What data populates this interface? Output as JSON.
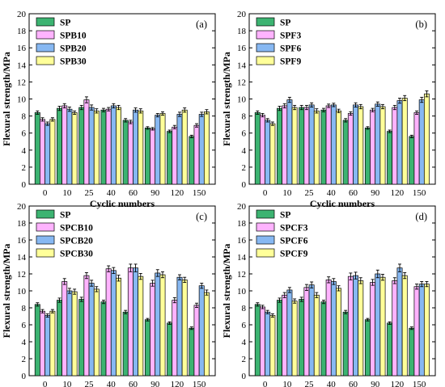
{
  "colors": [
    "#3cb371",
    "#ffb3ff",
    "#87b8f2",
    "#ffff99"
  ],
  "chart_data": [
    {
      "type": "bar",
      "panel_label": "(a)",
      "xlabel": "Cyclic numbers",
      "ylabel": "Flexural strength/MPa",
      "ylim": [
        0,
        20
      ],
      "yticks": [
        0,
        2,
        4,
        6,
        8,
        10,
        12,
        14,
        16,
        18,
        20
      ],
      "categories": [
        "0",
        "10",
        "25",
        "40",
        "60",
        "90",
        "120",
        "150"
      ],
      "legend_position": "top-left",
      "series": [
        {
          "name": "SP",
          "values": [
            8.4,
            8.9,
            9.0,
            8.7,
            7.5,
            6.6,
            6.2,
            5.6
          ],
          "errors": [
            0.2,
            0.25,
            0.25,
            0.2,
            0.2,
            0.15,
            0.15,
            0.15
          ]
        },
        {
          "name": "SPB10",
          "values": [
            7.6,
            9.2,
            9.9,
            8.8,
            7.3,
            6.5,
            6.7,
            6.9
          ],
          "errors": [
            0.2,
            0.25,
            0.35,
            0.2,
            0.2,
            0.15,
            0.2,
            0.2
          ]
        },
        {
          "name": "SPB20",
          "values": [
            7.1,
            8.8,
            9.0,
            9.2,
            8.7,
            8.1,
            8.2,
            8.2
          ],
          "errors": [
            0.2,
            0.25,
            0.3,
            0.25,
            0.25,
            0.2,
            0.25,
            0.25
          ]
        },
        {
          "name": "SPB30",
          "values": [
            7.6,
            8.4,
            8.6,
            9.0,
            8.6,
            8.3,
            8.7,
            8.5
          ],
          "errors": [
            0.2,
            0.2,
            0.25,
            0.25,
            0.25,
            0.2,
            0.25,
            0.25
          ]
        }
      ]
    },
    {
      "type": "bar",
      "panel_label": "(b)",
      "xlabel": "Cyclic numbers",
      "ylabel": "Flexural strength/MPa",
      "ylim": [
        0,
        20
      ],
      "yticks": [
        0,
        2,
        4,
        6,
        8,
        10,
        12,
        14,
        16,
        18,
        20
      ],
      "categories": [
        "0",
        "10",
        "25",
        "40",
        "60",
        "90",
        "120",
        "150"
      ],
      "legend_position": "top-left",
      "series": [
        {
          "name": "SP",
          "values": [
            8.4,
            8.9,
            9.0,
            8.7,
            7.5,
            6.6,
            6.2,
            5.6
          ],
          "errors": [
            0.2,
            0.25,
            0.25,
            0.2,
            0.2,
            0.15,
            0.15,
            0.15
          ]
        },
        {
          "name": "SPF3",
          "values": [
            8.1,
            9.2,
            9.0,
            9.2,
            8.3,
            8.7,
            9.0,
            8.4
          ],
          "errors": [
            0.2,
            0.25,
            0.25,
            0.2,
            0.2,
            0.2,
            0.25,
            0.2
          ]
        },
        {
          "name": "SPF6",
          "values": [
            7.5,
            9.9,
            9.3,
            9.3,
            9.3,
            9.4,
            9.8,
            9.9
          ],
          "errors": [
            0.2,
            0.3,
            0.25,
            0.2,
            0.25,
            0.25,
            0.3,
            0.3
          ]
        },
        {
          "name": "SPF9",
          "values": [
            7.1,
            9.0,
            8.6,
            8.6,
            9.1,
            9.1,
            10.1,
            10.6
          ],
          "errors": [
            0.2,
            0.25,
            0.25,
            0.2,
            0.25,
            0.25,
            0.3,
            0.35
          ]
        }
      ]
    },
    {
      "type": "bar",
      "panel_label": "(c)",
      "xlabel": "Cyclic numbers",
      "ylabel": "Flexural strength/MPa",
      "ylim": [
        0,
        20
      ],
      "yticks": [
        0,
        2,
        4,
        6,
        8,
        10,
        12,
        14,
        16,
        18,
        20
      ],
      "categories": [
        "0",
        "10",
        "25",
        "40",
        "60",
        "90",
        "120",
        "150"
      ],
      "legend_position": "top-left",
      "series": [
        {
          "name": "SP",
          "values": [
            8.4,
            8.9,
            9.0,
            8.7,
            7.5,
            6.6,
            6.2,
            5.6
          ],
          "errors": [
            0.2,
            0.25,
            0.25,
            0.2,
            0.2,
            0.15,
            0.15,
            0.15
          ]
        },
        {
          "name": "SPCB10",
          "values": [
            7.6,
            11.1,
            11.8,
            12.6,
            12.7,
            10.9,
            8.9,
            8.3
          ],
          "errors": [
            0.2,
            0.35,
            0.35,
            0.35,
            0.45,
            0.35,
            0.3,
            0.25
          ]
        },
        {
          "name": "SPCB20",
          "values": [
            7.1,
            10.0,
            10.9,
            12.4,
            12.7,
            12.1,
            11.6,
            10.6
          ],
          "errors": [
            0.2,
            0.3,
            0.35,
            0.35,
            0.45,
            0.4,
            0.3,
            0.3
          ]
        },
        {
          "name": "SPCB30",
          "values": [
            7.6,
            9.9,
            10.2,
            11.5,
            11.7,
            11.9,
            11.3,
            9.8
          ],
          "errors": [
            0.2,
            0.3,
            0.3,
            0.35,
            0.35,
            0.35,
            0.3,
            0.3
          ]
        }
      ]
    },
    {
      "type": "bar",
      "panel_label": "(d)",
      "xlabel": "Cyclic numbers",
      "ylabel": "Flexural strength/MPa",
      "ylim": [
        0,
        20
      ],
      "yticks": [
        0,
        2,
        4,
        6,
        8,
        10,
        12,
        14,
        16,
        18,
        20
      ],
      "categories": [
        "0",
        "10",
        "25",
        "40",
        "60",
        "90",
        "120",
        "150"
      ],
      "legend_position": "top-left",
      "series": [
        {
          "name": "SP",
          "values": [
            8.4,
            8.9,
            9.0,
            8.7,
            7.5,
            6.6,
            6.2,
            5.6
          ],
          "errors": [
            0.2,
            0.25,
            0.25,
            0.2,
            0.2,
            0.15,
            0.15,
            0.15
          ]
        },
        {
          "name": "SPCF3",
          "values": [
            8.1,
            9.5,
            10.4,
            11.3,
            11.7,
            11.0,
            11.2,
            10.5
          ],
          "errors": [
            0.2,
            0.3,
            0.35,
            0.35,
            0.4,
            0.35,
            0.35,
            0.3
          ]
        },
        {
          "name": "SPCF6",
          "values": [
            7.5,
            10.1,
            10.7,
            11.1,
            11.8,
            12.0,
            12.7,
            10.8
          ],
          "errors": [
            0.2,
            0.3,
            0.35,
            0.35,
            0.4,
            0.45,
            0.45,
            0.3
          ]
        },
        {
          "name": "SPCF9",
          "values": [
            7.1,
            8.8,
            9.5,
            10.3,
            11.2,
            11.6,
            11.8,
            10.8
          ],
          "errors": [
            0.2,
            0.25,
            0.3,
            0.3,
            0.35,
            0.35,
            0.35,
            0.3
          ]
        }
      ]
    }
  ]
}
